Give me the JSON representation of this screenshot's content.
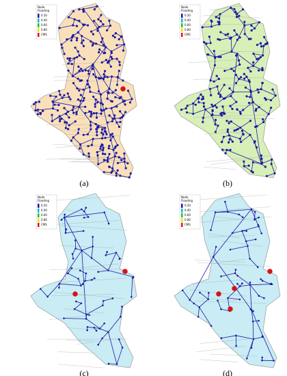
{
  "panels": [
    {
      "label": "(a)",
      "fill": "#f9e0ba",
      "legend": {
        "title": [
          "Node",
          "Flooding"
        ],
        "items": [
          "0.20",
          "0.40",
          "0.60",
          "0.80",
          "CMS"
        ],
        "colors": [
          "#1a1aa0",
          "#18b4e0",
          "#20c020",
          "#e8e020",
          "#e01010"
        ]
      }
    },
    {
      "label": "(b)",
      "fill": "#d8efb8",
      "legend": {
        "title": [
          "Node",
          "Flooding"
        ],
        "items": [
          "0.20",
          "0.40",
          "0.60",
          "0.80",
          "CMS"
        ],
        "colors": [
          "#1a1aa0",
          "#18b4e0",
          "#20c020",
          "#e8e020",
          "#e01010"
        ]
      }
    },
    {
      "label": "(c)",
      "fill": "#c9ecf5",
      "legend": {
        "title": [
          "Node",
          "Flooding"
        ],
        "items": [
          "0.20",
          "0.40",
          "0.60",
          "0.80",
          "CMS"
        ],
        "colors": [
          "#1a1aa0",
          "#18b4e0",
          "#20c020",
          "#e8e020",
          "#e01010"
        ]
      }
    },
    {
      "label": "(d)",
      "fill": "#c9ecf5",
      "legend": {
        "title": [
          "Node",
          "Flooding"
        ],
        "items": [
          "0.20",
          "0.40",
          "0.60",
          "0.80",
          "CMS"
        ],
        "colors": [
          "#1a1aa0",
          "#18b4e0",
          "#20c020",
          "#e8e020",
          "#e01010"
        ]
      }
    }
  ]
}
